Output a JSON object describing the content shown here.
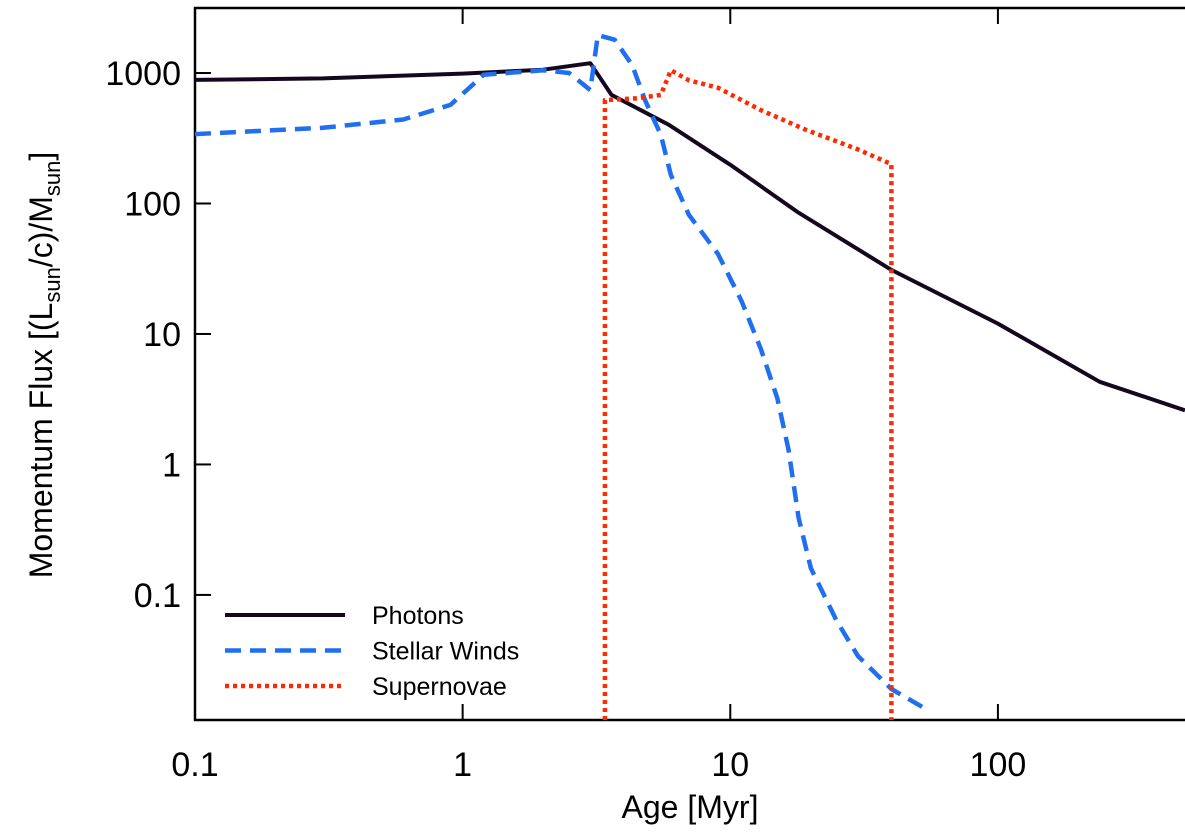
{
  "chart_data": {
    "type": "line",
    "x_label": "Age [Myr]",
    "y_label_parts": [
      "Momentum Flux [(L",
      "sun",
      "/c)/M",
      "sun",
      "]"
    ],
    "xlog": true,
    "ylog": true,
    "xlim": [
      0.1,
      500
    ],
    "ylim": [
      0.011,
      3150
    ],
    "xticks": [
      0.1,
      1,
      10,
      100
    ],
    "yticks": [
      0.1,
      1,
      10,
      100,
      1000
    ],
    "legend": "lower left",
    "series": [
      {
        "name": "Photons",
        "color": "#14081f",
        "style": "solid",
        "x": [
          0.1,
          0.3,
          1,
          2,
          3,
          3.6,
          5,
          5.9,
          10,
          18,
          40,
          100,
          240,
          500
        ],
        "values": [
          885,
          910,
          990,
          1060,
          1190,
          680,
          478,
          400,
          198,
          85,
          31,
          12,
          4.3,
          2.6
        ]
      },
      {
        "name": "Stellar Winds",
        "color": "#1f6ff0",
        "style": "dashed",
        "x": [
          0.1,
          0.3,
          0.6,
          0.9,
          1.2,
          2,
          2.5,
          3,
          3.2,
          3.7,
          4.3,
          4.8,
          5.5,
          6,
          7,
          9,
          11,
          13,
          15,
          16.5,
          18,
          20,
          25,
          30,
          40,
          55
        ],
        "values": [
          340,
          380,
          440,
          570,
          970,
          1050,
          1000,
          740,
          1950,
          1800,
          1150,
          620,
          336,
          165,
          82,
          41,
          18,
          7.7,
          3.2,
          1.3,
          0.39,
          0.16,
          0.063,
          0.034,
          0.019,
          0.013
        ]
      },
      {
        "name": "Supernovae",
        "color": "#ff2a00",
        "style": "dotted",
        "x": [
          3.4,
          3.4,
          4.5,
          5.5,
          6,
          7,
          9,
          13,
          19,
          30,
          40,
          40
        ],
        "values": [
          0.011,
          620,
          640,
          680,
          1050,
          880,
          770,
          520,
          370,
          260,
          200,
          0.011
        ]
      }
    ]
  }
}
